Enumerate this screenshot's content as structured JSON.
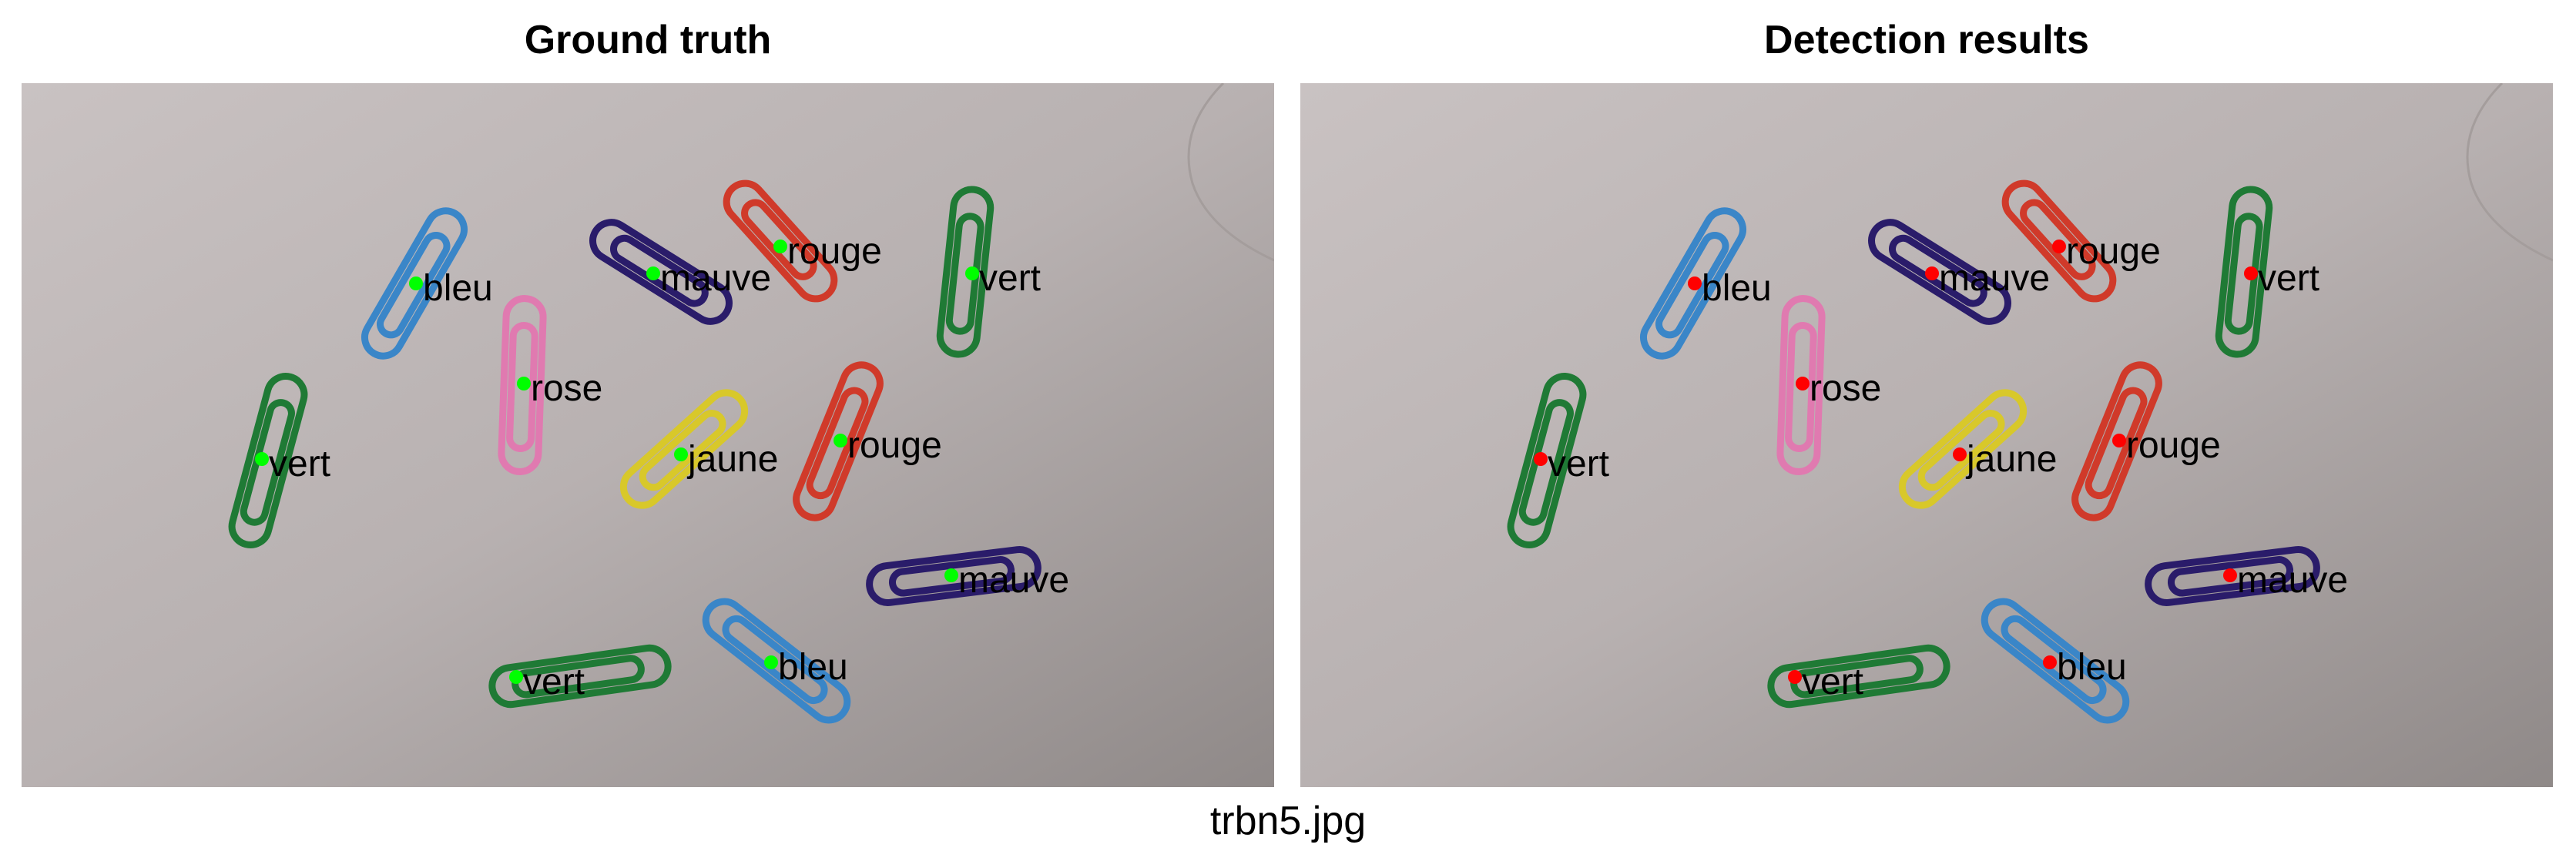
{
  "panels": [
    {
      "title": "Ground truth",
      "marker_color": "#00ff00",
      "labels": [
        {
          "text": "bleu"
        },
        {
          "text": "mauve"
        },
        {
          "text": "rouge"
        },
        {
          "text": "vert"
        },
        {
          "text": "rose"
        },
        {
          "text": "vert"
        },
        {
          "text": "jaune"
        },
        {
          "text": "rouge"
        },
        {
          "text": "mauve"
        },
        {
          "text": "vert"
        },
        {
          "text": "bleu"
        }
      ]
    },
    {
      "title": "Detection results",
      "marker_color": "#ff0000",
      "labels": [
        {
          "text": "bleu"
        },
        {
          "text": "mauve"
        },
        {
          "text": "rouge"
        },
        {
          "text": "vert"
        },
        {
          "text": "rose"
        },
        {
          "text": "vert"
        },
        {
          "text": "jaune"
        },
        {
          "text": "rouge"
        },
        {
          "text": "mauve"
        },
        {
          "text": "vert"
        },
        {
          "text": "bleu"
        }
      ]
    }
  ],
  "clip_colors": {
    "bleu": "#3a86c8",
    "mauve": "#2a1c6a",
    "rouge": "#d03a2a",
    "vert": "#1f7a35",
    "rose": "#e07ab0",
    "jaune": "#d8c82a"
  },
  "filename": "trbn5.jpg"
}
